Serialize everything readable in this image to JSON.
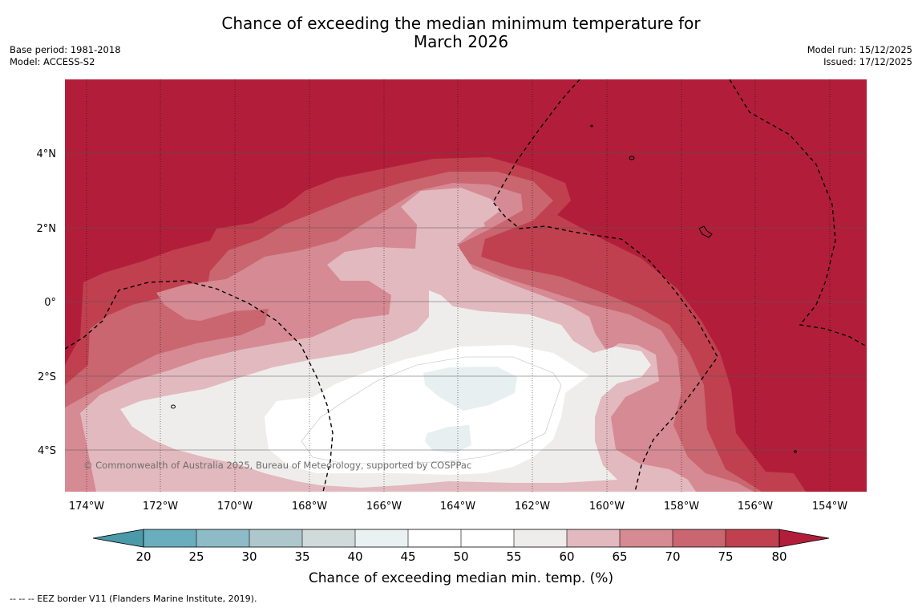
{
  "title": {
    "line1": "Chance of exceeding the median minimum temperature for",
    "line2": "March 2026"
  },
  "meta_left": {
    "base_period": "Base period: 1981-2018",
    "model": "Model: ACCESS-S2"
  },
  "meta_right": {
    "model_run": "Model run: 15/12/2025",
    "issued": "Issued: 17/12/2025"
  },
  "map": {
    "lat_labels": [
      "4°N",
      "2°N",
      "0°",
      "2°S",
      "4°S"
    ],
    "lon_labels": [
      "174°W",
      "172°W",
      "170°W",
      "168°W",
      "166°W",
      "164°W",
      "162°W",
      "160°W",
      "158°W",
      "156°W",
      "154°W"
    ],
    "copyright": "© Commonwealth of Australia 2025, Bureau of Meteorology, supported by COSPPac",
    "colors": {
      "c80": "#b21e3a",
      "c75": "#c0404f",
      "c70": "#c96670",
      "c65": "#d68a93",
      "c60": "#e2b9be",
      "c55": "#efedec",
      "c50": "#ffffff",
      "c45": "#e8eff1"
    }
  },
  "colorbar": {
    "ticks": [
      "20",
      "25",
      "30",
      "35",
      "40",
      "45",
      "50",
      "55",
      "60",
      "65",
      "70",
      "75",
      "80"
    ],
    "colors": [
      "#4b9aaa",
      "#6aaebd",
      "#8dbcc7",
      "#aec7cc",
      "#d1dada",
      "#eaf1f2",
      "#ffffff",
      "#ffffff",
      "#efedec",
      "#e2b9be",
      "#d68a93",
      "#c96670",
      "#c0404f",
      "#b21e3a"
    ],
    "label": "Chance of exceeding median min. temp. (%)"
  },
  "footer": "--  --  -- EEZ border V11 (Flanders Marine Institute, 2019)."
}
